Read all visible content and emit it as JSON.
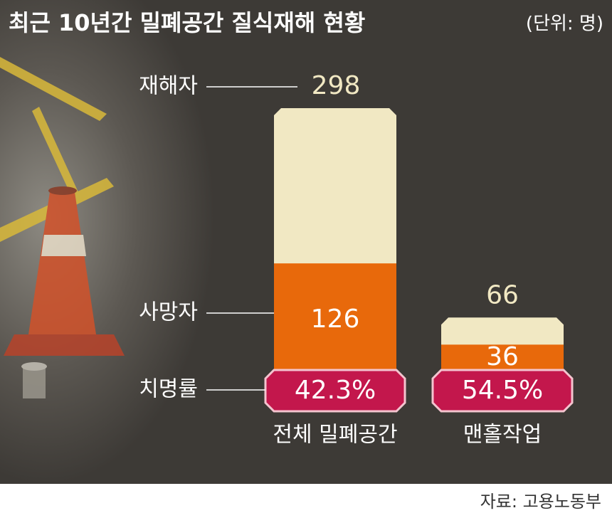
{
  "chart_data": {
    "type": "bar",
    "title": "최근 10년간 밀폐공간 질식재해 현황",
    "subtitle": "(단위: 명)",
    "categories": [
      "전체 밀폐공간",
      "맨홀작업"
    ],
    "series": [
      {
        "name": "재해자",
        "color": "#f1e8c3",
        "values": [
          298,
          66
        ]
      },
      {
        "name": "사망자",
        "color": "#e8690b",
        "values": [
          126,
          36
        ]
      }
    ],
    "rate": {
      "name": "치명률",
      "color": "#c3174c",
      "values": [
        42.3,
        54.5
      ],
      "value_labels": [
        "42.3%",
        "54.5%"
      ]
    },
    "source": "자료: 고용노동부"
  }
}
